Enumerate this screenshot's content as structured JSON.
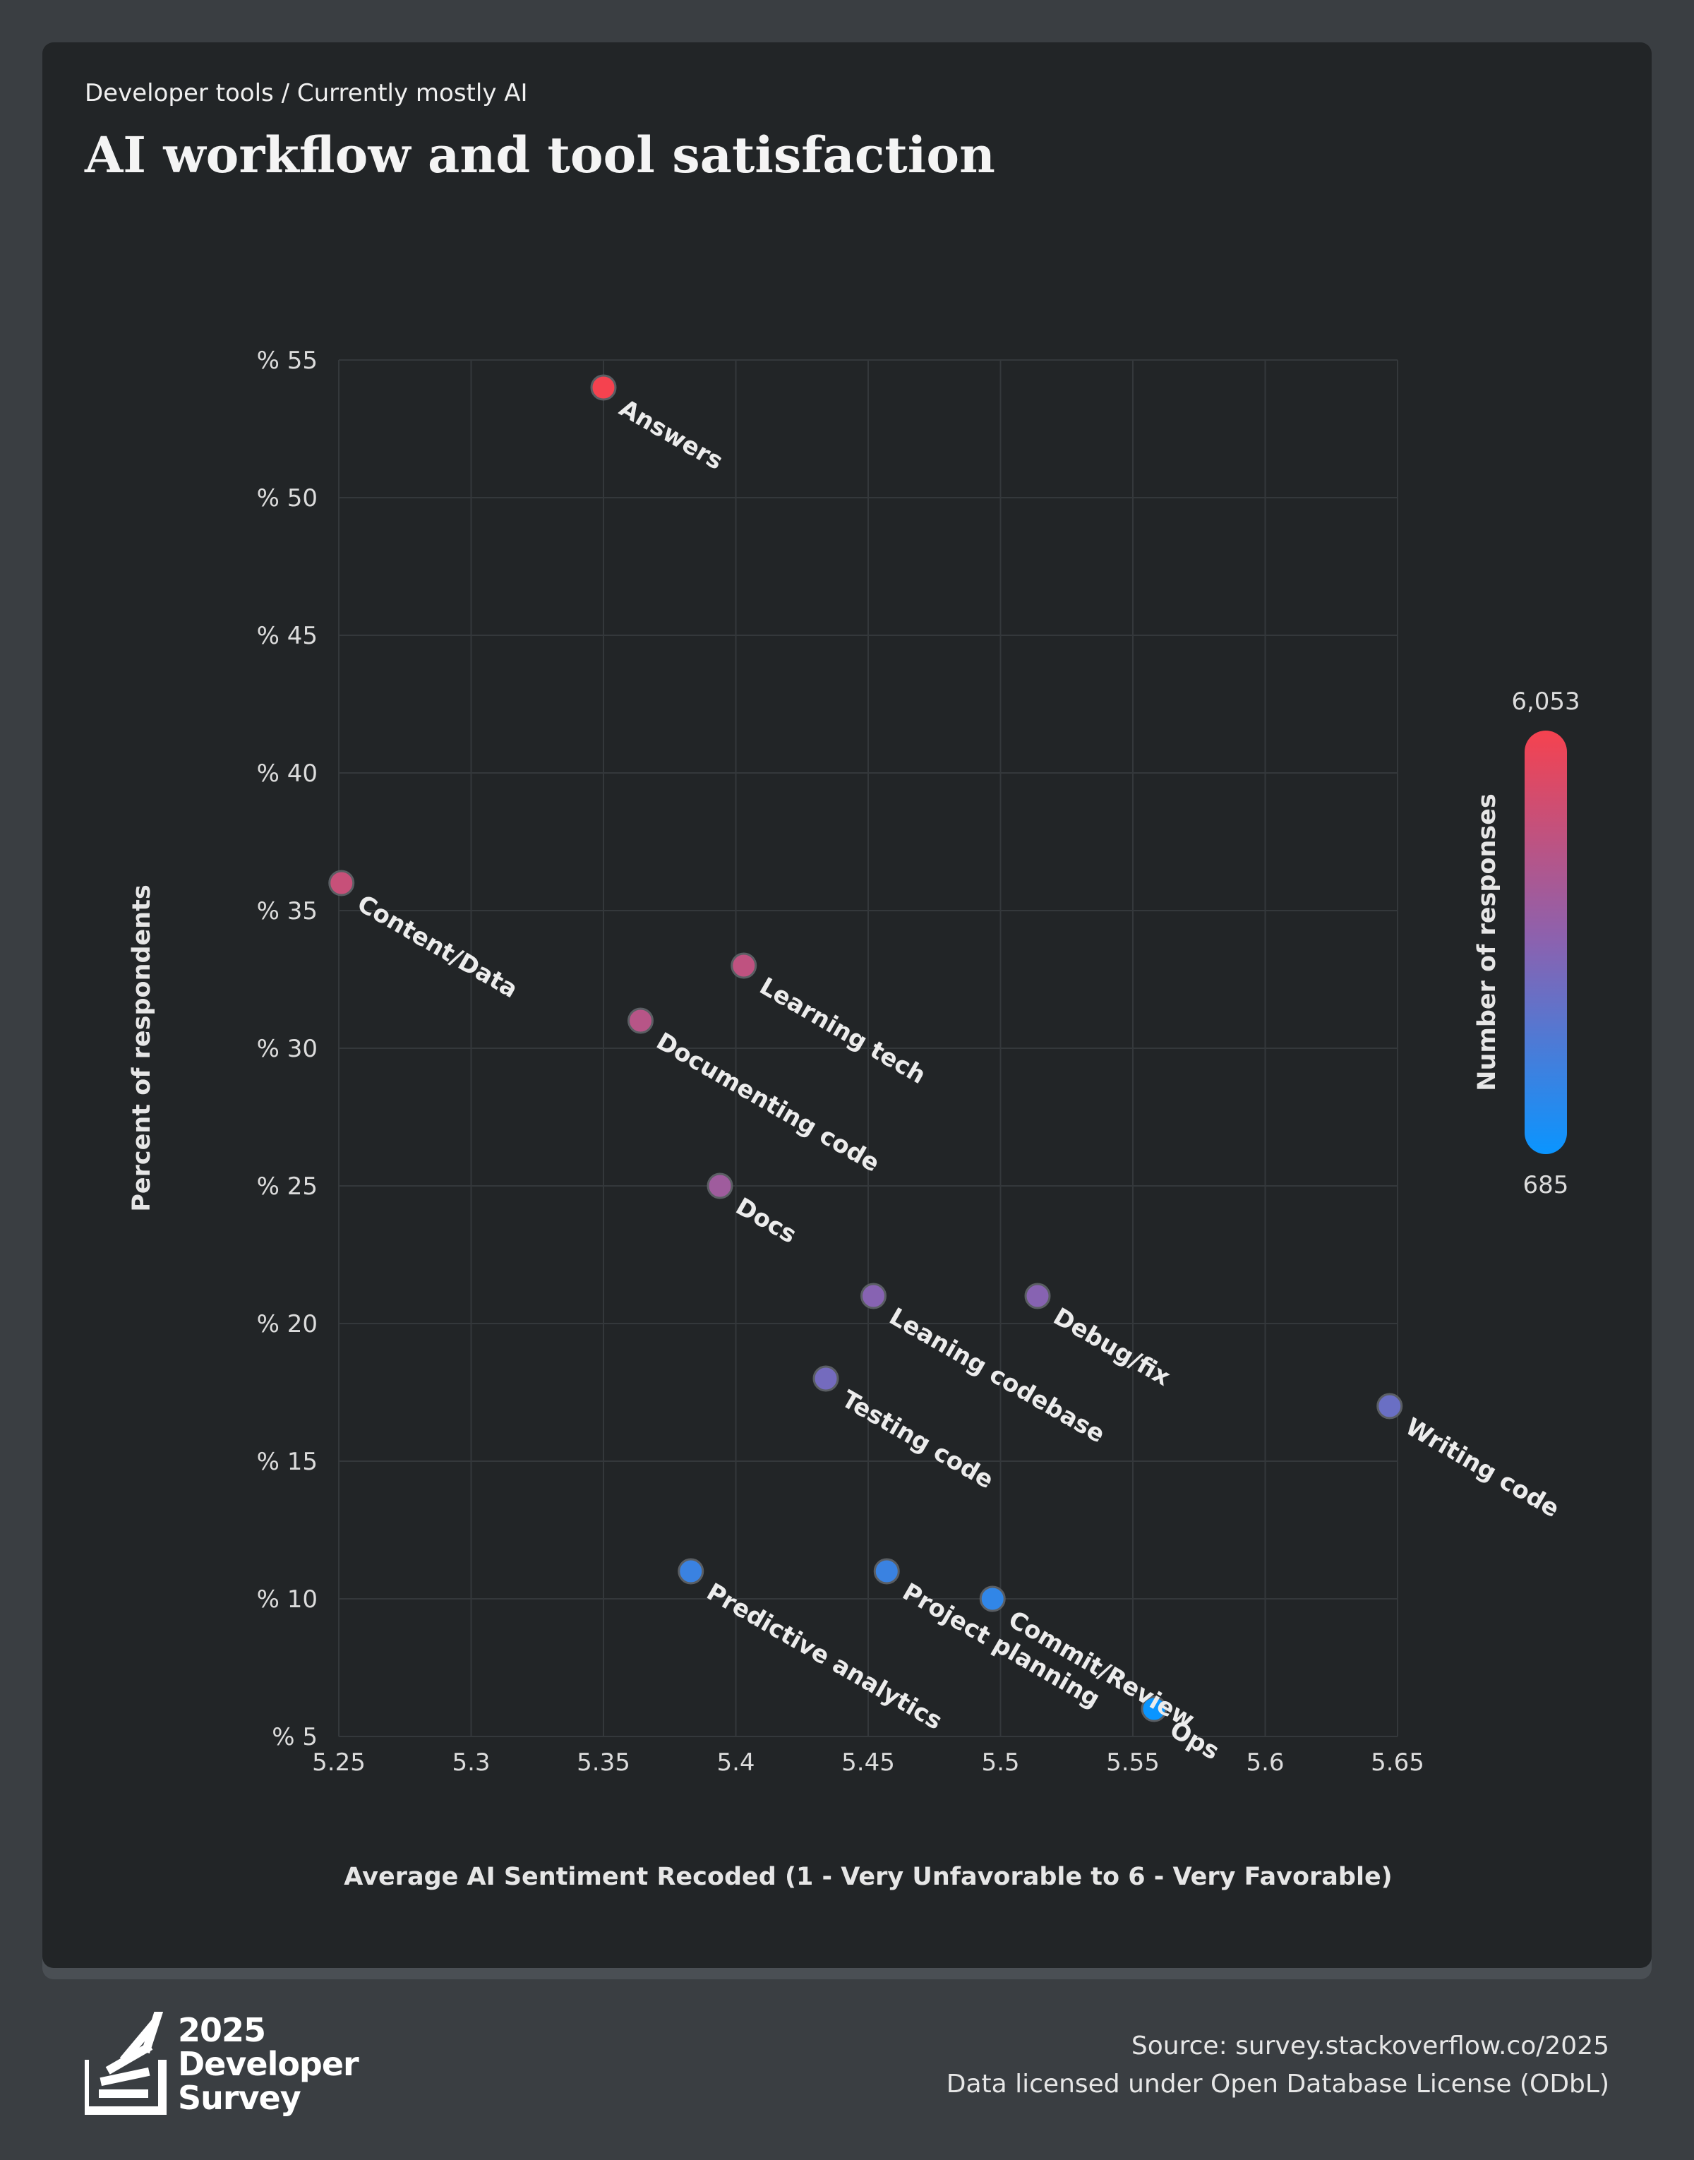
{
  "header": {
    "breadcrumb": "Developer tools / Currently mostly AI",
    "title": "AI workflow and tool satisfaction"
  },
  "chart_data": {
    "type": "scatter",
    "xlabel": "Average AI Sentiment Recoded (1 - Very Unfavorable to 6 - Very Favorable)",
    "ylabel": "Percent of respondents",
    "xlim": [
      5.25,
      5.65
    ],
    "ylim": [
      5,
      55
    ],
    "x_ticks": [
      "5.25",
      "5.3",
      "5.35",
      "5.4",
      "5.45",
      "5.5",
      "5.55",
      "5.6",
      "5.65"
    ],
    "y_ticks": [
      "% 55",
      "% 50",
      "% 45",
      "% 40",
      "% 35",
      "% 30",
      "% 25",
      "% 20",
      "% 15",
      "% 10",
      "% 5"
    ],
    "grid": true,
    "color_scale": {
      "label": "Number of responses",
      "max_label": "6,053",
      "min_label": "685",
      "min": 685,
      "max": 6053,
      "low_color": "#0a95ff",
      "mid_color": "#8a62b0",
      "high_color": "#f5424f"
    },
    "points": [
      {
        "label": "Answers",
        "x": 5.35,
        "y": 54,
        "responses": 6053
      },
      {
        "label": "Content/Data",
        "x": 5.251,
        "y": 36,
        "responses": 4900
      },
      {
        "label": "Learning tech",
        "x": 5.403,
        "y": 33,
        "responses": 4700
      },
      {
        "label": "Documenting code",
        "x": 5.364,
        "y": 31,
        "responses": 4500
      },
      {
        "label": "Docs",
        "x": 5.394,
        "y": 25,
        "responses": 3900
      },
      {
        "label": "Leaning codebase",
        "x": 5.452,
        "y": 21,
        "responses": 3300
      },
      {
        "label": "Debug/fix",
        "x": 5.514,
        "y": 21,
        "responses": 3300
      },
      {
        "label": "Testing code",
        "x": 5.434,
        "y": 18,
        "responses": 2900
      },
      {
        "label": "Writing code",
        "x": 5.647,
        "y": 17,
        "responses": 2700
      },
      {
        "label": "Predictive analytics",
        "x": 5.383,
        "y": 11,
        "responses": 1700
      },
      {
        "label": "Project planning",
        "x": 5.457,
        "y": 11,
        "responses": 1700
      },
      {
        "label": "Commit/Review",
        "x": 5.497,
        "y": 10,
        "responses": 1500
      },
      {
        "label": "Ops",
        "x": 5.558,
        "y": 6,
        "responses": 685
      }
    ]
  },
  "footer": {
    "logo_year": "2025",
    "logo_line1": "Developer",
    "logo_line2": "Survey",
    "source": "Source: survey.stackoverflow.co/2025",
    "license": "Data licensed under Open Database License (ODbL)"
  }
}
